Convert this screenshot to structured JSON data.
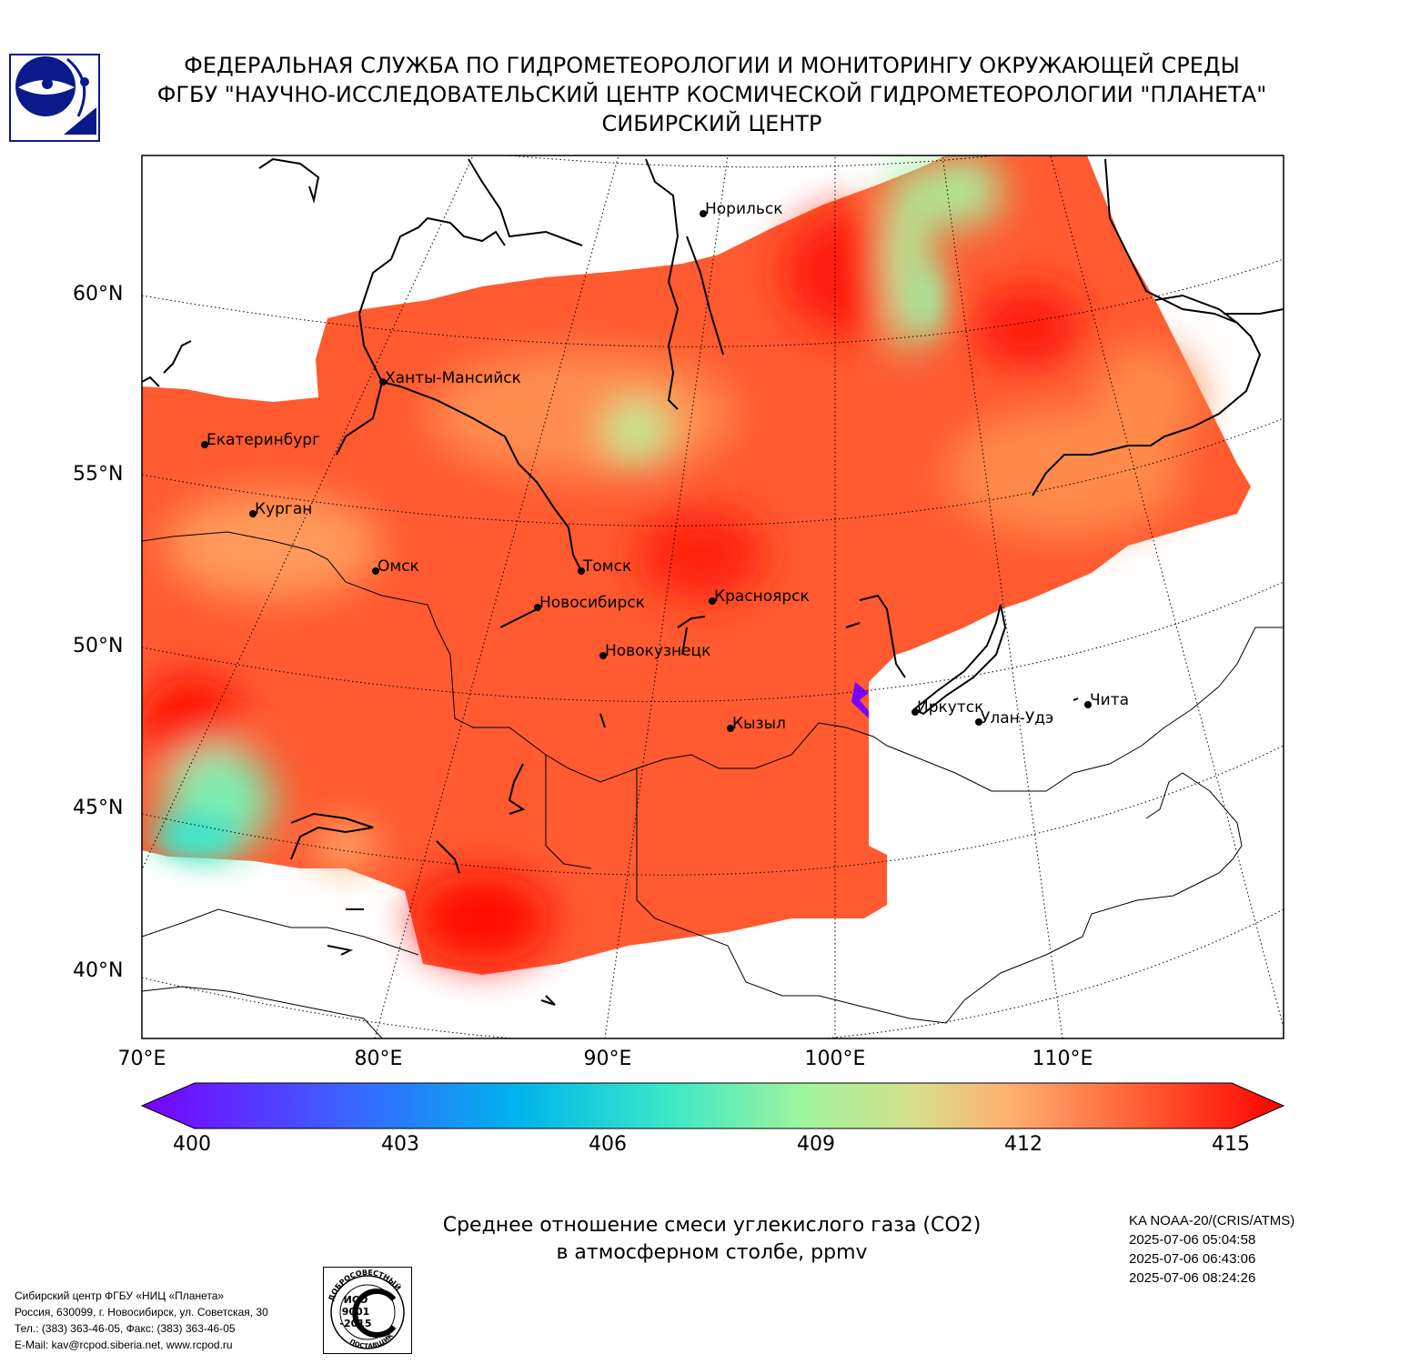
{
  "header": {
    "line1": "ФЕДЕРАЛЬНАЯ СЛУЖБА ПО ГИДРОМЕТЕОРОЛОГИИ И МОНИТОРИНГУ ОКРУЖАЮЩЕЙ СРЕДЫ",
    "line2": "ФГБУ \"НАУЧНО-ИССЛЕДОВАТЕЛЬСКИЙ ЦЕНТР КОСМИЧЕСКОЙ ГИДРОМЕТЕОРОЛОГИИ \"ПЛАНЕТА\"",
    "line3": "СИБИРСКИЙ ЦЕНТР"
  },
  "map": {
    "lat_labels": [
      "60°N",
      "55°N",
      "50°N",
      "45°N",
      "40°N"
    ],
    "lon_labels": [
      "70°E",
      "80°E",
      "90°E",
      "100°E",
      "110°E"
    ],
    "cities": [
      "Норильск",
      "Ханты-Мансийск",
      "Екатеринбург",
      "Курган",
      "Омск",
      "Томск",
      "Новосибирск",
      "Красноярск",
      "Новокузнецк",
      "Кызыл",
      "Иркутск",
      "Улан-Удэ",
      "Чита"
    ],
    "colors": {
      "high": "#ff0d00",
      "mid_high": "#ff5a2e",
      "mid": "#ff8a4a",
      "low": "#a8f5a0",
      "very_low": "#3be8c8",
      "min": "#7a00ff"
    }
  },
  "colorbar": {
    "ticks": [
      "400",
      "403",
      "406",
      "409",
      "412",
      "415"
    ],
    "min": 400,
    "max": 415
  },
  "caption": {
    "line1": "Среднее отношение смеси углекислого газа (CO2)",
    "line2": "в атмосферном столбе, ppmv"
  },
  "satellite": {
    "name": "KA NOAA-20/(CRIS/ATMS)",
    "times": [
      "2025-07-06 05:04:58",
      "2025-07-06 06:43:06",
      "2025-07-06 08:24:26"
    ]
  },
  "footer": {
    "line1": "Сибирский центр ФГБУ «НИЦ «Планета»",
    "line2": "Россия, 630099, г. Новосибирск, ул. Советская, 30",
    "line3": "Тел.: (383) 363-46-05, Факс: (383) 363-46-05",
    "line4": "E-Mail: kav@rcpod.siberia.net, www.rcpod.ru"
  },
  "iso_badge": {
    "top_text": "ДОБРОСОВЕСТНЫЙ",
    "bottom_text": "ПОСТАВЩИК",
    "l1": "ИСО",
    "l2": "9001",
    "l3": "-2015"
  }
}
